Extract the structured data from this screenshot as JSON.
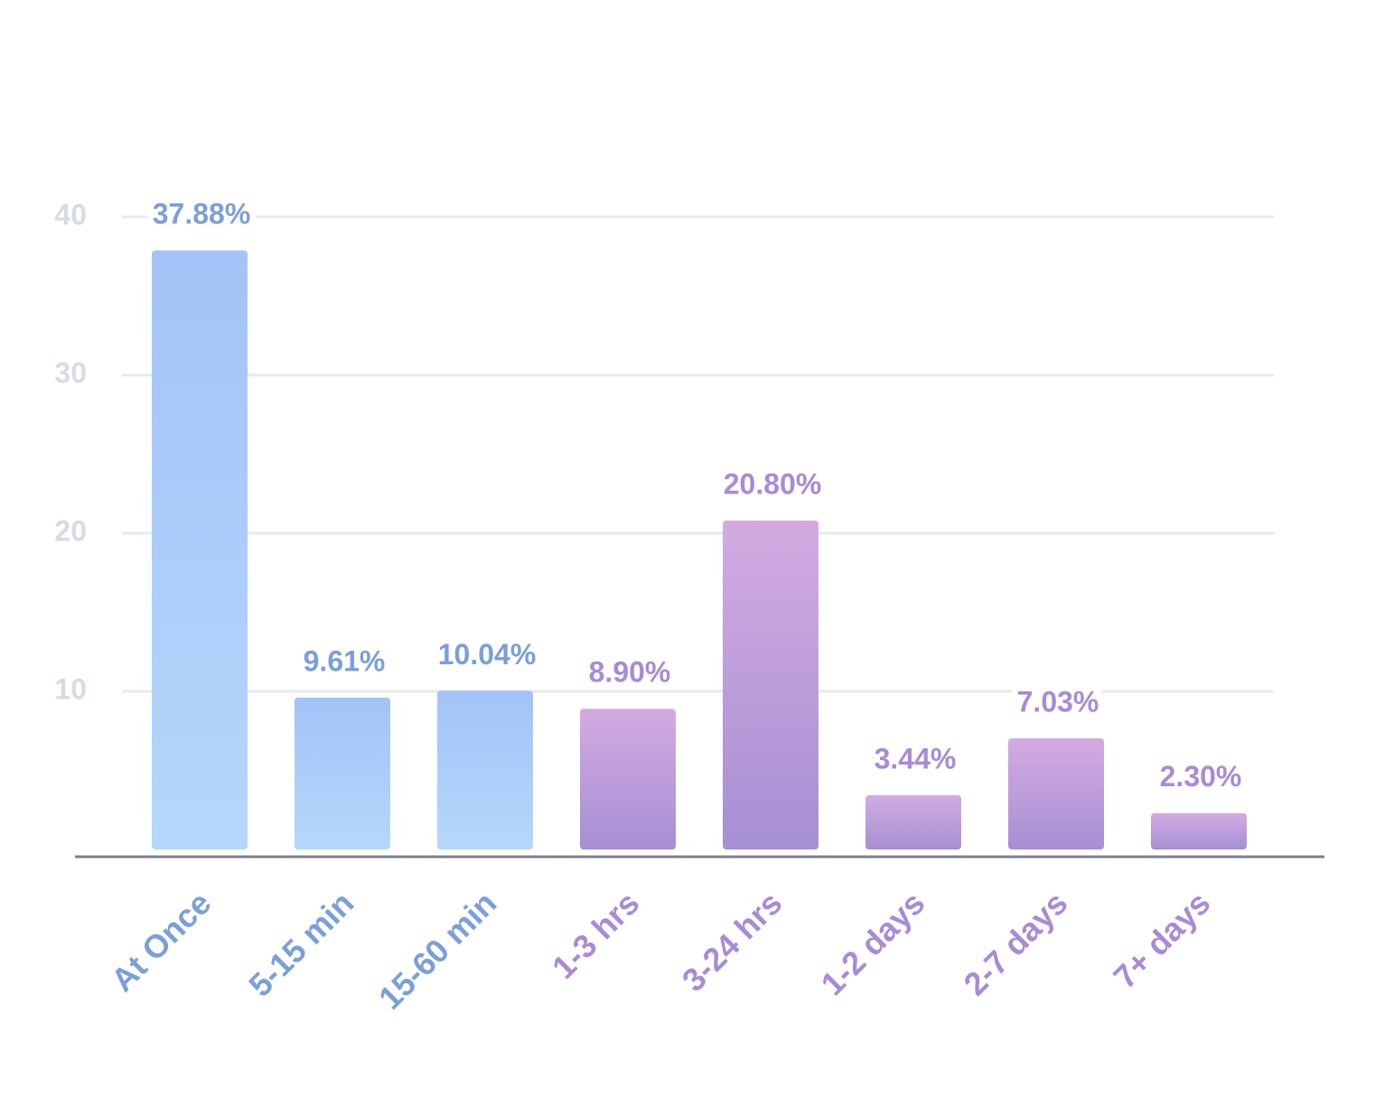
{
  "chart_data": {
    "type": "bar",
    "categories": [
      "At Once",
      "5-15 min",
      "15-60 min",
      "1-3 hrs",
      "3-24 hrs",
      "1-2 days",
      "2-7 days",
      "7+ days"
    ],
    "values": [
      37.88,
      9.61,
      10.04,
      8.9,
      20.8,
      3.44,
      7.03,
      2.3
    ],
    "value_labels": [
      "37.88%",
      "9.61%",
      "10.04%",
      "8.90%",
      "20.80%",
      "3.44%",
      "7.03%",
      "2.30%"
    ],
    "colors": [
      [
        "#a3c3f8",
        "#b4d7fb"
      ],
      [
        "#a3c3f8",
        "#b4d7fb"
      ],
      [
        "#a3c3f8",
        "#b4d7fb"
      ],
      [
        "#d3abe1",
        "#a68fd3"
      ],
      [
        "#d3abe1",
        "#a68fd3"
      ],
      [
        "#d3abe1",
        "#a68fd3"
      ],
      [
        "#d3abe1",
        "#a68fd3"
      ],
      [
        "#d3abe1",
        "#a68fd3"
      ]
    ],
    "label_colors": [
      "#7b9fd8",
      "#7b9fd8",
      "#7b9fd8",
      "#a98bd4",
      "#a98bd4",
      "#a98bd4",
      "#a98bd4",
      "#a98bd4"
    ],
    "ylim": [
      0,
      40
    ],
    "yticks": [
      10,
      20,
      30,
      40
    ],
    "grid": true
  }
}
